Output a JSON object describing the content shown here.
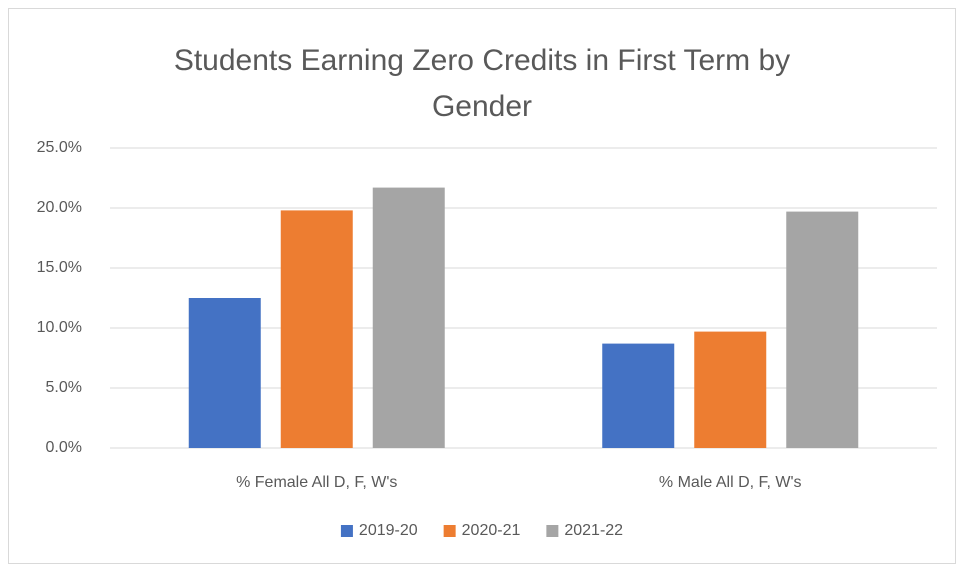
{
  "chart_data": {
    "type": "bar",
    "title": "Students Earning Zero Credits in First Term by Gender",
    "categories": [
      "% Female All D, F, W's",
      "% Male All D, F, W's"
    ],
    "series": [
      {
        "name": "2019-20",
        "color": "#4472c4",
        "values": [
          12.5,
          8.7
        ]
      },
      {
        "name": "2020-21",
        "color": "#ed7d31",
        "values": [
          19.8,
          9.7
        ]
      },
      {
        "name": "2021-22",
        "color": "#a5a5a5",
        "values": [
          21.7,
          19.7
        ]
      }
    ],
    "ylim": [
      0,
      25
    ],
    "yticks": [
      {
        "value": 0,
        "label": "0.0%"
      },
      {
        "value": 5,
        "label": "5.0%"
      },
      {
        "value": 10,
        "label": "10.0%"
      },
      {
        "value": 15,
        "label": "15.0%"
      },
      {
        "value": 20,
        "label": "20.0%"
      },
      {
        "value": 25,
        "label": "25.0%"
      }
    ],
    "grid": true,
    "legend": "bottom"
  }
}
